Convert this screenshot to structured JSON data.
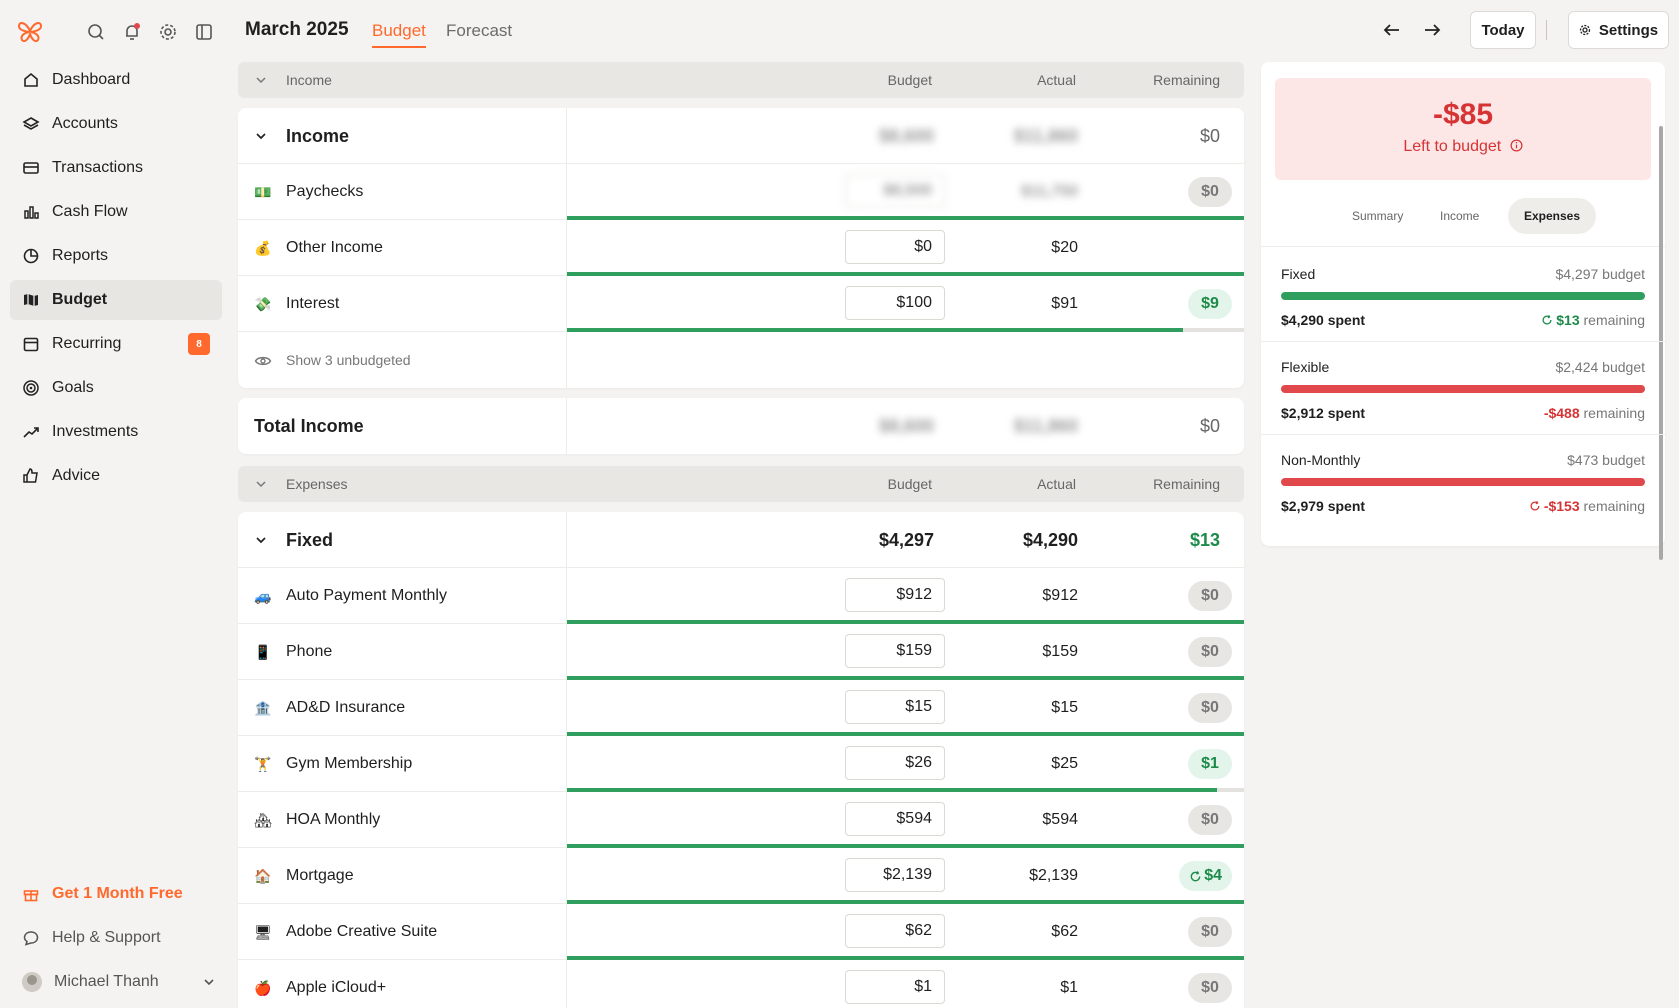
{
  "sidebar": {
    "nav": [
      {
        "label": "Dashboard",
        "icon": "home-icon"
      },
      {
        "label": "Accounts",
        "icon": "layers-icon"
      },
      {
        "label": "Transactions",
        "icon": "card-icon"
      },
      {
        "label": "Cash Flow",
        "icon": "bar-chart-icon"
      },
      {
        "label": "Reports",
        "icon": "pie-chart-icon"
      },
      {
        "label": "Budget",
        "icon": "map-icon"
      },
      {
        "label": "Recurring",
        "icon": "calendar-icon",
        "badge": "8"
      },
      {
        "label": "Goals",
        "icon": "target-icon"
      },
      {
        "label": "Investments",
        "icon": "trend-up-icon"
      },
      {
        "label": "Advice",
        "icon": "thumbs-up-icon"
      }
    ],
    "promo": "Get 1 Month Free",
    "help": "Help & Support",
    "user": "Michael Thanh"
  },
  "header": {
    "month": "March 2025",
    "tabs": [
      "Budget",
      "Forecast"
    ],
    "today": "Today",
    "settings": "Settings"
  },
  "table": {
    "columns": {
      "budget": "Budget",
      "actual": "Actual",
      "remaining": "Remaining"
    },
    "income_section": "Income",
    "income_group": {
      "label": "Income",
      "budget": "$8,600",
      "actual": "$11,860",
      "remaining": "$0"
    },
    "income_rows": [
      {
        "emoji": "💵",
        "name": "Paychecks",
        "budget": "$8,500",
        "actual": "$11,750",
        "remaining": "$0",
        "progress": 1.0
      },
      {
        "emoji": "💰",
        "name": "Other Income",
        "budget": "$0",
        "actual": "$20",
        "remaining": "",
        "progress": 1.0
      },
      {
        "emoji": "💸",
        "name": "Interest",
        "budget": "$100",
        "actual": "$91",
        "remaining": "$9",
        "progress": 0.91
      }
    ],
    "show_unbudgeted": "Show 3 unbudgeted",
    "total_income": {
      "label": "Total Income",
      "budget": "$8,600",
      "actual": "$11,860",
      "remaining": "$0"
    },
    "expenses_section": "Expenses",
    "fixed_group": {
      "label": "Fixed",
      "budget": "$4,297",
      "actual": "$4,290",
      "remaining": "$13"
    },
    "fixed_rows": [
      {
        "emoji": "🚙",
        "name": "Auto Payment Monthly",
        "budget": "$912",
        "actual": "$912",
        "remaining": "$0",
        "progress": 1.0
      },
      {
        "emoji": "📱",
        "name": "Phone",
        "budget": "$159",
        "actual": "$159",
        "remaining": "$0",
        "progress": 1.0
      },
      {
        "emoji": "🏦",
        "name": "AD&D Insurance",
        "budget": "$15",
        "actual": "$15",
        "remaining": "$0",
        "progress": 1.0
      },
      {
        "emoji": "🏋",
        "name": "Gym Membership",
        "budget": "$26",
        "actual": "$25",
        "remaining": "$1",
        "progress": 0.96
      },
      {
        "emoji": "🏘",
        "name": "HOA Monthly",
        "budget": "$594",
        "actual": "$594",
        "remaining": "$0",
        "progress": 1.0
      },
      {
        "emoji": "🏠",
        "name": "Mortgage",
        "budget": "$2,139",
        "actual": "$2,139",
        "remaining": "$4",
        "progress": 1.0,
        "rollover": true
      },
      {
        "emoji": "🖥",
        "name": "Adobe Creative Suite",
        "budget": "$62",
        "actual": "$62",
        "remaining": "$0",
        "progress": 1.0
      },
      {
        "emoji": "🍎",
        "name": "Apple iCloud+",
        "budget": "$1",
        "actual": "$1",
        "remaining": "$0",
        "progress": 1.0
      }
    ]
  },
  "panel": {
    "left_amount": "-$85",
    "left_label": "Left to budget",
    "tabs": [
      "Summary",
      "Income",
      "Expenses"
    ],
    "rows": [
      {
        "title": "Fixed",
        "budget": "$4,297 budget",
        "spent": "$4,290 spent",
        "remaining_amt": "$13",
        "remaining_lbl": "remaining",
        "progress": 1.0,
        "status": "good",
        "bar_color": "#2f9e5f"
      },
      {
        "title": "Flexible",
        "budget": "$2,424 budget",
        "spent": "$2,912 spent",
        "remaining_amt": "-$488",
        "remaining_lbl": "remaining",
        "progress": 1.0,
        "status": "over",
        "bar_color": "#e0484b"
      },
      {
        "title": "Non-Monthly",
        "budget": "$473 budget",
        "spent": "$2,979 spent",
        "remaining_amt": "-$153",
        "remaining_lbl": "remaining",
        "progress": 1.0,
        "status": "over",
        "bar_color": "#e0484b"
      }
    ]
  }
}
